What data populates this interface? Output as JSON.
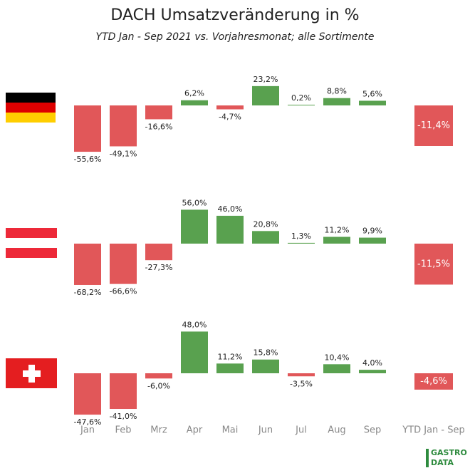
{
  "chart_data": {
    "type": "bar",
    "title": "DACH Umsatzveränderung in %",
    "subtitle": "YTD Jan - Sep 2021 vs. Vorjahresmonat; alle Sortimente",
    "categories": [
      "Jan",
      "Feb",
      "Mrz",
      "Apr",
      "Mai",
      "Jun",
      "Jul",
      "Aug",
      "Sep",
      "YTD Jan - Sep"
    ],
    "positive_color": "#59a14f",
    "negative_color": "#e15759",
    "ytd_ylim": [
      -14,
      0
    ],
    "panels": [
      {
        "ylim": [
          -60,
          30
        ],
        "values": [
          -55.6,
          -49.1,
          -16.6,
          6.2,
          -4.7,
          23.2,
          0.2,
          8.8,
          5.6,
          -11.4
        ],
        "value_labels": [
          "-55,6%",
          "-49,1%",
          "-16,6%",
          "6,2%",
          "-4,7%",
          "23,2%",
          "0,2%",
          "8,8%",
          "5,6%",
          "-11,4%"
        ]
      },
      {
        "ylim": [
          -70,
          60
        ],
        "values": [
          -68.2,
          -66.6,
          -27.3,
          56.0,
          46.0,
          20.8,
          1.3,
          11.2,
          9.9,
          -11.5
        ],
        "value_labels": [
          "-68,2%",
          "-66,6%",
          "-27,3%",
          "56,0%",
          "46,0%",
          "20,8%",
          "1,3%",
          "11,2%",
          "9,9%",
          "-11,5%"
        ]
      },
      {
        "ylim": [
          -50,
          50
        ],
        "values": [
          -47.6,
          -41.0,
          -6.0,
          48.0,
          11.2,
          15.8,
          -3.5,
          10.4,
          4.0,
          -4.6
        ],
        "value_labels": [
          "-47,6%",
          "-41,0%",
          "-6,0%",
          "48,0%",
          "11,2%",
          "15,8%",
          "-3,5%",
          "10,4%",
          "4,0%",
          "-4,6%"
        ]
      }
    ]
  },
  "brand": {
    "line1": "GASTRO",
    "line2": "DATA"
  }
}
